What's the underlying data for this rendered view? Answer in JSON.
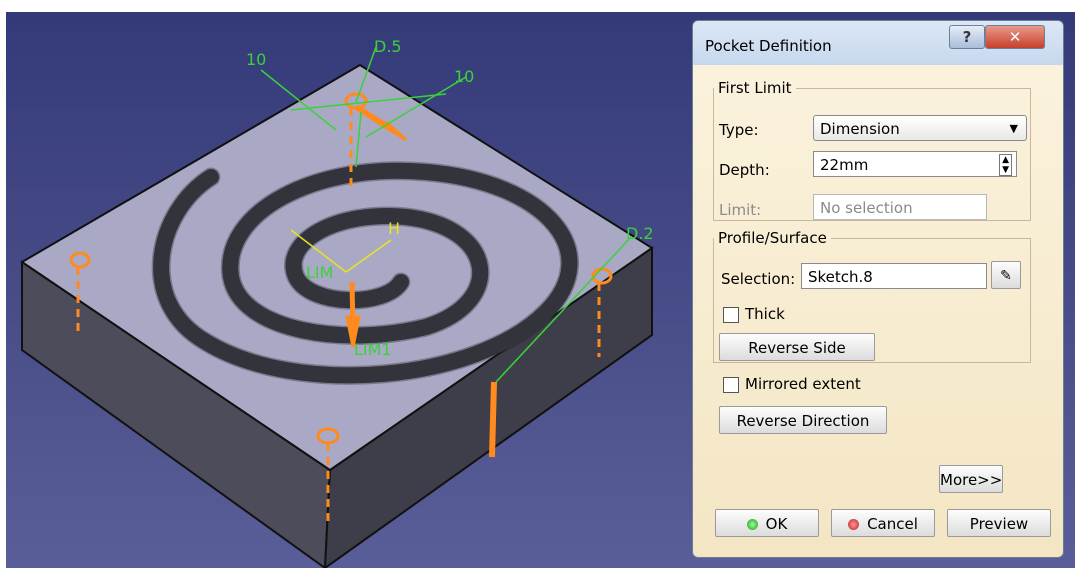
{
  "viewport": {
    "labels": [
      "10",
      "D.5",
      "10",
      "D.2",
      "H",
      "LIM",
      "LIM1"
    ]
  },
  "dialog": {
    "title": "Pocket Definition",
    "help": "?",
    "first_limit": {
      "legend": "First Limit",
      "type_label": "Type:",
      "type_value": "Dimension",
      "depth_label": "Depth:",
      "depth_value": "22mm",
      "limit_label": "Limit:",
      "limit_value": "No selection"
    },
    "profile": {
      "legend": "Profile/Surface",
      "selection_label": "Selection:",
      "selection_value": "Sketch.8",
      "thick": "Thick",
      "reverse_side": "Reverse Side"
    },
    "mirrored": "Mirrored extent",
    "reverse_direction": "Reverse Direction",
    "more": "More>>",
    "ok": "OK",
    "cancel": "Cancel",
    "preview": "Preview"
  }
}
